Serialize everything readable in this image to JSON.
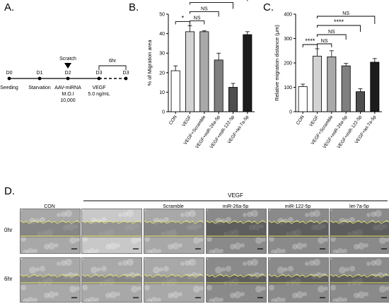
{
  "panels": {
    "a": "A.",
    "b": "B.",
    "c": "C.",
    "d": "D."
  },
  "timeline": {
    "days": [
      "D0",
      "D1",
      "D2",
      "D3",
      "D3"
    ],
    "below": [
      "Seeding",
      "Starvation",
      "AAV-miRNA",
      "VEGF"
    ],
    "below2": [
      "M.O.I",
      "5.0 ng/mL"
    ],
    "below3": "10,000",
    "scratch": "Scratch",
    "interval": "6hr"
  },
  "chart_data": [
    {
      "type": "bar",
      "ylabel": "% of Migration area",
      "ylim": [
        0,
        50
      ],
      "yticks": [
        0,
        10,
        20,
        30,
        40,
        50
      ],
      "categories": [
        "CON",
        "VEGF",
        "VEGF+Scramble",
        "VEGF+miR-26a-5p",
        "VEGF+miR-122-5p",
        "VEGF+let-7a-5p"
      ],
      "values": [
        21,
        41,
        41,
        26.5,
        12.5,
        39.5
      ],
      "errors": [
        2.5,
        3,
        0.5,
        3.5,
        2,
        1.5
      ],
      "colors": [
        "#ffffff",
        "#d3d3d3",
        "#a9a9a9",
        "#7f7f7f",
        "#4e4e4e",
        "#1c1c1c"
      ],
      "significance": [
        {
          "from": 0,
          "to": 1,
          "label": "*"
        },
        {
          "from": 1,
          "to": 2,
          "label": "NS"
        },
        {
          "from": 1,
          "to": 3,
          "label": "NS"
        },
        {
          "from": 1,
          "to": 4,
          "label": "*"
        },
        {
          "from": 1,
          "to": 5,
          "label": "NS"
        }
      ]
    },
    {
      "type": "bar",
      "ylabel": "Relative migration distance (μm)",
      "ylim": [
        0,
        400
      ],
      "yticks": [
        0,
        100,
        200,
        300,
        400
      ],
      "categories": [
        "CON",
        "VEGF",
        "VEGF+Scramble",
        "VEGF+miR-26a-5p",
        "VEGF+miR-122-5p",
        "VEGF+let-7a-5p"
      ],
      "values": [
        103,
        228,
        225,
        188,
        82,
        203
      ],
      "errors": [
        10,
        30,
        25,
        10,
        12,
        15
      ],
      "colors": [
        "#ffffff",
        "#d3d3d3",
        "#a9a9a9",
        "#7f7f7f",
        "#4e4e4e",
        "#1c1c1c"
      ],
      "significance": [
        {
          "from": 0,
          "to": 1,
          "label": "****"
        },
        {
          "from": 1,
          "to": 2,
          "label": "NS"
        },
        {
          "from": 1,
          "to": 3,
          "label": "NS"
        },
        {
          "from": 1,
          "to": 4,
          "label": "****"
        },
        {
          "from": 1,
          "to": 5,
          "label": "NS"
        }
      ]
    }
  ],
  "micrographs": {
    "group_label": "VEGF",
    "columns": [
      "CON",
      "",
      "Scramble",
      "miR-26a-5p",
      "miR-122-5p",
      "let-7a-5p"
    ],
    "rows": [
      "0hr",
      "6hr"
    ]
  }
}
